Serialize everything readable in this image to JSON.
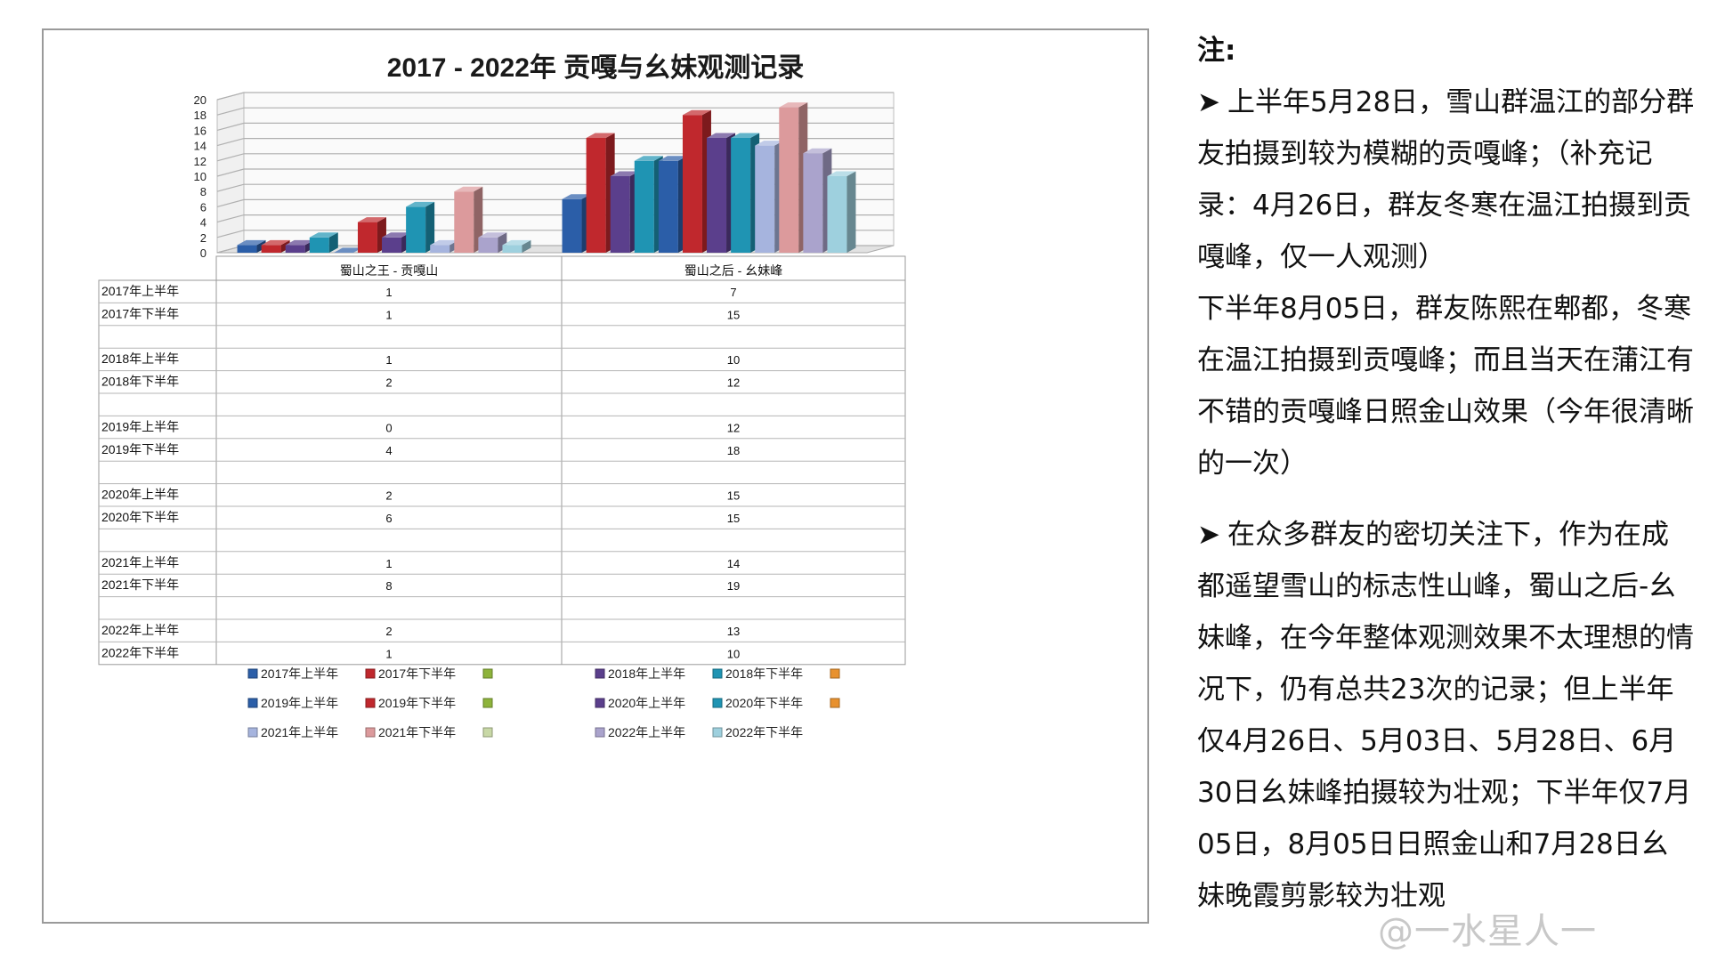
{
  "chart_data": {
    "type": "bar",
    "title": "2017 - 2022年 贡嘎与幺妹观测记录",
    "categories": [
      "蜀山之王 - 贡嘎山",
      "蜀山之后 - 幺妹峰"
    ],
    "ylim": [
      0,
      20
    ],
    "yticks": [
      0,
      2,
      4,
      6,
      8,
      10,
      12,
      14,
      16,
      18,
      20
    ],
    "grid": true,
    "legend_position": "bottom",
    "series": [
      {
        "name": "2017年上半年",
        "values": [
          1,
          7
        ],
        "color": "#2b5ea8"
      },
      {
        "name": "2017年下半年",
        "values": [
          1,
          15
        ],
        "color": "#c0282d"
      },
      {
        "name": "2018年上半年",
        "values": [
          1,
          10
        ],
        "color": "#5b3f8c"
      },
      {
        "name": "2018年下半年",
        "values": [
          2,
          12
        ],
        "color": "#1f94b3"
      },
      {
        "name": "2019年上半年",
        "values": [
          0,
          12
        ],
        "color": "#2b5ea8"
      },
      {
        "name": "2019年下半年",
        "values": [
          4,
          18
        ],
        "color": "#c0282d"
      },
      {
        "name": "2020年上半年",
        "values": [
          2,
          15
        ],
        "color": "#5b3f8c"
      },
      {
        "name": "2020年下半年",
        "values": [
          6,
          15
        ],
        "color": "#1f94b3"
      },
      {
        "name": "2021年上半年",
        "values": [
          1,
          14
        ],
        "color": "#a6b4de"
      },
      {
        "name": "2021年下半年",
        "values": [
          8,
          19
        ],
        "color": "#dc9a9c"
      },
      {
        "name": "2022年上半年",
        "values": [
          2,
          13
        ],
        "color": "#aaa3cc"
      },
      {
        "name": "2022年下半年",
        "values": [
          1,
          10
        ],
        "color": "#9ed0de"
      }
    ],
    "legend_rows": [
      [
        {
          "label": "2017年上半年",
          "color": "#2b5ea8"
        },
        {
          "label": "2017年下半年",
          "color": "#c0282d"
        },
        {
          "label": "",
          "color": "#8db33a"
        },
        {
          "label": "2018年上半年",
          "color": "#5b3f8c"
        },
        {
          "label": "2018年下半年",
          "color": "#1f94b3"
        },
        {
          "label": "",
          "color": "#e8912e"
        }
      ],
      [
        {
          "label": "2019年上半年",
          "color": "#2b5ea8"
        },
        {
          "label": "2019年下半年",
          "color": "#c0282d"
        },
        {
          "label": "",
          "color": "#8db33a"
        },
        {
          "label": "2020年上半年",
          "color": "#5b3f8c"
        },
        {
          "label": "2020年下半年",
          "color": "#1f94b3"
        },
        {
          "label": "",
          "color": "#e8912e"
        }
      ],
      [
        {
          "label": "2021年上半年",
          "color": "#a6b4de"
        },
        {
          "label": "2021年下半年",
          "color": "#dc9a9c"
        },
        {
          "label": "",
          "color": "#c8d8a6"
        },
        {
          "label": "2022年上半年",
          "color": "#aaa3cc"
        },
        {
          "label": "2022年下半年",
          "color": "#9ed0de"
        }
      ]
    ]
  },
  "table": {
    "rows": [
      {
        "label": "2017年上半年",
        "values": [
          "1",
          "7"
        ]
      },
      {
        "label": "2017年下半年",
        "values": [
          "1",
          "15"
        ]
      },
      {
        "label": "",
        "values": [
          "",
          ""
        ]
      },
      {
        "label": "2018年上半年",
        "values": [
          "1",
          "10"
        ]
      },
      {
        "label": "2018年下半年",
        "values": [
          "2",
          "12"
        ]
      },
      {
        "label": "",
        "values": [
          "",
          ""
        ]
      },
      {
        "label": "2019年上半年",
        "values": [
          "0",
          "12"
        ]
      },
      {
        "label": "2019年下半年",
        "values": [
          "4",
          "18"
        ]
      },
      {
        "label": "",
        "values": [
          "",
          ""
        ]
      },
      {
        "label": "2020年上半年",
        "values": [
          "2",
          "15"
        ]
      },
      {
        "label": "2020年下半年",
        "values": [
          "6",
          "15"
        ]
      },
      {
        "label": "",
        "values": [
          "",
          ""
        ]
      },
      {
        "label": "2021年上半年",
        "values": [
          "1",
          "14"
        ]
      },
      {
        "label": "2021年下半年",
        "values": [
          "8",
          "19"
        ]
      },
      {
        "label": "",
        "values": [
          "",
          ""
        ]
      },
      {
        "label": "2022年上半年",
        "values": [
          "2",
          "13"
        ]
      },
      {
        "label": "2022年下半年",
        "values": [
          "1",
          "10"
        ]
      }
    ]
  },
  "notes": {
    "title": "注:",
    "arrow": "➤",
    "p1": "上半年5月28日，雪山群温江的部分群友拍摄到较为模糊的贡嘎峰；（补充记录：4月26日，群友冬寒在温江拍摄到贡嘎峰，仅一人观测）",
    "p2": "下半年8月05日，群友陈熙在郫都，冬寒在温江拍摄到贡嘎峰；而且当天在蒲江有不错的贡嘎峰日照金山效果（今年很清晰的一次）",
    "p3": "在众多群友的密切关注下，作为在成都遥望雪山的标志性山峰，蜀山之后-幺妹峰，在今年整体观测效果不太理想的情况下，仍有总共23次的记录；但上半年仅4月26日、5月03日、5月28日、6月30日幺妹峰拍摄较为壮观；下半年仅7月05日，8月05日日照金山和7月28日幺妹晚霞剪影较为壮观"
  },
  "watermark": "@一水星人一"
}
